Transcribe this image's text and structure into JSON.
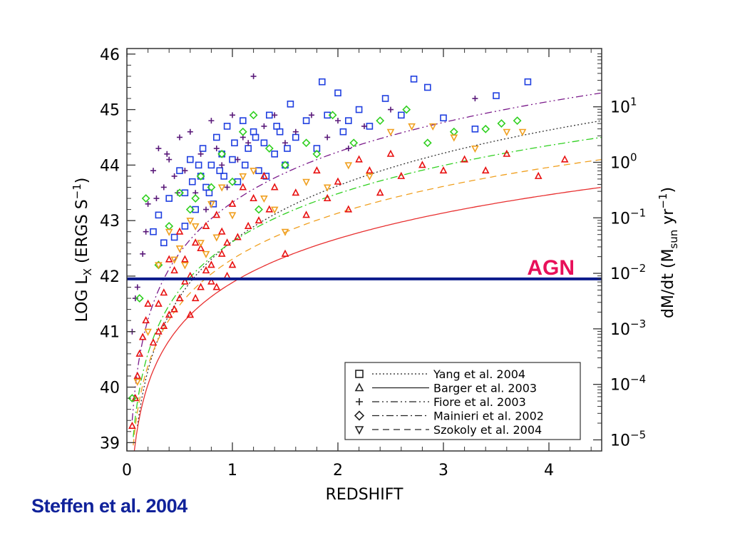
{
  "credit": "Steffen et al. 2004",
  "chart_data": {
    "type": "scatter",
    "title": "",
    "xlabel": "REDSHIFT",
    "ylabel": "LOG L",
    "ylabel_sub": "X",
    "ylabel_unit": " (ERGS S",
    "ylabel_unit_sup": "−1",
    "ylabel_unit_end": ")",
    "y2label_prefix": "dM/dt (M",
    "y2label_sub": "sun",
    "y2label_unit": " yr",
    "y2label_sup": "−1",
    "y2label_end": ")",
    "xlim": [
      0,
      4.5
    ],
    "ylim": [
      38.85,
      46.1
    ],
    "xticks": [
      0,
      1,
      2,
      3,
      4
    ],
    "xtick_labels": [
      "0",
      "1",
      "2",
      "3",
      "4"
    ],
    "yticks": [
      39,
      40,
      41,
      42,
      43,
      44,
      45,
      46
    ],
    "ytick_labels": [
      "39",
      "40",
      "41",
      "42",
      "43",
      "44",
      "45",
      "46"
    ],
    "y2ticks": [
      {
        "y": 39.05,
        "base": "10",
        "exp": "−5"
      },
      {
        "y": 40.05,
        "base": "10",
        "exp": "−4"
      },
      {
        "y": 41.05,
        "base": "10",
        "exp": "−3"
      },
      {
        "y": 42.05,
        "base": "10",
        "exp": "−2"
      },
      {
        "y": 43.05,
        "base": "10",
        "exp": "−1"
      },
      {
        "y": 44.05,
        "base": "10",
        "exp": "0"
      },
      {
        "y": 45.05,
        "base": "10",
        "exp": "1"
      }
    ],
    "agn_line": {
      "y": 41.95,
      "label": "AGN",
      "color": "#0a1a8c",
      "label_color": "#e8105a"
    },
    "grid": false,
    "legend_position": "bottom-right",
    "series": [
      {
        "name": "Yang et al. 2004",
        "marker": "square",
        "dash": "dotted",
        "color": "#1f3fe0",
        "curve_color": "#333333",
        "points": [
          [
            0.25,
            42.8
          ],
          [
            0.3,
            43.1
          ],
          [
            0.35,
            42.6
          ],
          [
            0.4,
            43.4
          ],
          [
            0.45,
            42.7
          ],
          [
            0.5,
            43.9
          ],
          [
            0.55,
            43.5
          ],
          [
            0.6,
            44.1
          ],
          [
            0.65,
            43.2
          ],
          [
            0.7,
            43.8
          ],
          [
            0.72,
            44.3
          ],
          [
            0.75,
            43.6
          ],
          [
            0.8,
            44.0
          ],
          [
            0.82,
            43.3
          ],
          [
            0.85,
            44.5
          ],
          [
            0.88,
            43.9
          ],
          [
            0.9,
            44.2
          ],
          [
            0.95,
            44.7
          ],
          [
            1.0,
            44.1
          ],
          [
            1.05,
            43.7
          ],
          [
            1.1,
            44.8
          ],
          [
            1.15,
            44.3
          ],
          [
            1.2,
            44.6
          ],
          [
            1.25,
            43.9
          ],
          [
            1.3,
            44.4
          ],
          [
            1.35,
            44.9
          ],
          [
            1.4,
            44.2
          ],
          [
            1.45,
            44.6
          ],
          [
            1.5,
            44.0
          ],
          [
            1.55,
            45.1
          ],
          [
            1.6,
            44.5
          ],
          [
            1.7,
            44.8
          ],
          [
            1.8,
            44.3
          ],
          [
            1.85,
            45.5
          ],
          [
            1.9,
            44.9
          ],
          [
            2.0,
            45.3
          ],
          [
            2.05,
            44.6
          ],
          [
            2.1,
            44.8
          ],
          [
            2.2,
            45.0
          ],
          [
            2.3,
            44.7
          ],
          [
            2.45,
            45.2
          ],
          [
            2.6,
            44.9
          ],
          [
            2.72,
            45.55
          ],
          [
            2.85,
            45.4
          ],
          [
            3.0,
            44.85
          ],
          [
            3.3,
            44.65
          ],
          [
            3.5,
            45.25
          ],
          [
            3.8,
            45.5
          ],
          [
            0.55,
            42.9
          ],
          [
            0.62,
            43.7
          ],
          [
            0.68,
            44.0
          ],
          [
            0.78,
            43.5
          ],
          [
            0.92,
            43.8
          ],
          [
            1.02,
            44.4
          ],
          [
            1.12,
            44.0
          ],
          [
            1.22,
            44.5
          ],
          [
            1.32,
            43.8
          ],
          [
            1.42,
            44.7
          ],
          [
            1.52,
            44.3
          ]
        ]
      },
      {
        "name": "Barger et al. 2003",
        "marker": "triangle",
        "dash": "solid",
        "color": "#e81010",
        "curve_color": "#e83030",
        "points": [
          [
            0.05,
            39.3
          ],
          [
            0.08,
            39.8
          ],
          [
            0.1,
            40.2
          ],
          [
            0.12,
            40.6
          ],
          [
            0.15,
            40.9
          ],
          [
            0.18,
            41.2
          ],
          [
            0.2,
            41.5
          ],
          [
            0.25,
            40.8
          ],
          [
            0.3,
            41.0
          ],
          [
            0.35,
            41.7
          ],
          [
            0.4,
            41.3
          ],
          [
            0.45,
            42.1
          ],
          [
            0.5,
            41.6
          ],
          [
            0.55,
            42.3
          ],
          [
            0.6,
            42.0
          ],
          [
            0.65,
            42.6
          ],
          [
            0.7,
            41.8
          ],
          [
            0.75,
            42.9
          ],
          [
            0.8,
            42.2
          ],
          [
            0.85,
            43.1
          ],
          [
            0.9,
            42.4
          ],
          [
            0.95,
            42.0
          ],
          [
            1.0,
            43.3
          ],
          [
            1.05,
            42.7
          ],
          [
            1.1,
            43.6
          ],
          [
            1.15,
            42.9
          ],
          [
            1.2,
            43.4
          ],
          [
            1.25,
            43.0
          ],
          [
            1.3,
            43.8
          ],
          [
            1.35,
            43.2
          ],
          [
            1.4,
            43.6
          ],
          [
            1.5,
            42.4
          ],
          [
            1.6,
            43.5
          ],
          [
            1.7,
            43.1
          ],
          [
            1.8,
            43.9
          ],
          [
            1.9,
            43.4
          ],
          [
            2.0,
            43.7
          ],
          [
            2.1,
            43.2
          ],
          [
            2.2,
            44.1
          ],
          [
            2.3,
            43.9
          ],
          [
            2.4,
            43.5
          ],
          [
            2.5,
            44.2
          ],
          [
            2.6,
            43.8
          ],
          [
            2.8,
            44.0
          ],
          [
            3.0,
            43.9
          ],
          [
            3.2,
            44.1
          ],
          [
            3.4,
            43.9
          ],
          [
            3.6,
            44.2
          ],
          [
            3.9,
            43.8
          ],
          [
            4.15,
            44.1
          ],
          [
            0.3,
            41.5
          ],
          [
            0.4,
            42.3
          ],
          [
            0.5,
            42.8
          ],
          [
            0.6,
            41.3
          ],
          [
            0.7,
            42.5
          ],
          [
            0.8,
            41.9
          ],
          [
            0.9,
            42.8
          ],
          [
            1.0,
            42.2
          ],
          [
            0.35,
            41.1
          ],
          [
            0.45,
            41.4
          ],
          [
            0.55,
            41.9
          ],
          [
            0.65,
            41.6
          ],
          [
            0.75,
            42.1
          ],
          [
            0.85,
            41.8
          ],
          [
            0.95,
            42.6
          ]
        ]
      },
      {
        "name": "Fiore et al. 2003",
        "marker": "plus",
        "dash": "dashdotdot",
        "color": "#5a1a7a",
        "curve_color": "#7a1a8a",
        "points": [
          [
            0.05,
            41.0
          ],
          [
            0.1,
            41.8
          ],
          [
            0.15,
            42.4
          ],
          [
            0.2,
            43.3
          ],
          [
            0.25,
            43.9
          ],
          [
            0.3,
            44.3
          ],
          [
            0.35,
            43.6
          ],
          [
            0.4,
            44.1
          ],
          [
            0.45,
            43.8
          ],
          [
            0.5,
            44.5
          ],
          [
            0.55,
            43.9
          ],
          [
            0.6,
            44.6
          ],
          [
            0.7,
            44.2
          ],
          [
            0.8,
            44.8
          ],
          [
            0.9,
            44.0
          ],
          [
            1.0,
            44.9
          ],
          [
            1.1,
            44.5
          ],
          [
            1.2,
            45.6
          ],
          [
            1.3,
            44.7
          ],
          [
            1.4,
            44.9
          ],
          [
            1.5,
            44.4
          ],
          [
            1.6,
            44.6
          ],
          [
            1.75,
            44.9
          ],
          [
            1.9,
            44.5
          ],
          [
            2.0,
            44.8
          ],
          [
            2.1,
            44.3
          ],
          [
            2.25,
            44.7
          ],
          [
            2.5,
            45.0
          ],
          [
            3.3,
            45.2
          ],
          [
            0.08,
            41.6
          ],
          [
            0.18,
            42.8
          ],
          [
            0.28,
            43.4
          ],
          [
            0.38,
            44.2
          ],
          [
            0.48,
            43.5
          ],
          [
            0.65,
            43.5
          ],
          [
            0.75,
            43.2
          ],
          [
            0.85,
            44.3
          ],
          [
            0.95,
            43.6
          ],
          [
            1.05,
            44.1
          ],
          [
            1.15,
            44.4
          ]
        ]
      },
      {
        "name": "Mainieri et al. 2002",
        "marker": "diamond",
        "dash": "dashdot",
        "color": "#30d020",
        "curve_color": "#30d020",
        "points": [
          [
            0.05,
            39.8
          ],
          [
            0.12,
            41.6
          ],
          [
            0.18,
            43.4
          ],
          [
            0.3,
            42.2
          ],
          [
            0.5,
            43.5
          ],
          [
            0.6,
            43.2
          ],
          [
            0.7,
            43.8
          ],
          [
            0.8,
            43.6
          ],
          [
            0.9,
            44.2
          ],
          [
            1.0,
            43.7
          ],
          [
            1.1,
            44.6
          ],
          [
            1.2,
            44.9
          ],
          [
            1.35,
            44.3
          ],
          [
            1.5,
            44.0
          ],
          [
            1.7,
            44.4
          ],
          [
            1.8,
            44.2
          ],
          [
            1.95,
            44.9
          ],
          [
            2.15,
            44.4
          ],
          [
            2.4,
            44.8
          ],
          [
            2.65,
            45.0
          ],
          [
            2.85,
            44.4
          ],
          [
            3.1,
            44.6
          ],
          [
            3.4,
            44.65
          ],
          [
            3.55,
            44.75
          ],
          [
            3.7,
            44.8
          ],
          [
            0.4,
            42.9
          ],
          [
            0.65,
            43.4
          ],
          [
            1.25,
            43.2
          ]
        ]
      },
      {
        "name": "Szokoly et al. 2004",
        "marker": "triangle-down",
        "dash": "dashed",
        "color": "#f0a020",
        "curve_color": "#f0a020",
        "points": [
          [
            0.1,
            40.1
          ],
          [
            0.2,
            41.0
          ],
          [
            0.3,
            42.2
          ],
          [
            0.4,
            42.8
          ],
          [
            0.5,
            42.5
          ],
          [
            0.6,
            43.0
          ],
          [
            0.7,
            42.6
          ],
          [
            0.8,
            43.3
          ],
          [
            0.9,
            43.6
          ],
          [
            1.0,
            43.1
          ],
          [
            1.1,
            43.8
          ],
          [
            1.2,
            43.9
          ],
          [
            1.3,
            43.4
          ],
          [
            1.4,
            43.2
          ],
          [
            1.5,
            42.8
          ],
          [
            1.7,
            43.7
          ],
          [
            1.9,
            43.6
          ],
          [
            2.1,
            44.0
          ],
          [
            2.3,
            43.8
          ],
          [
            2.5,
            44.6
          ],
          [
            2.7,
            44.7
          ],
          [
            2.9,
            44.7
          ],
          [
            3.1,
            44.5
          ],
          [
            3.3,
            44.3
          ],
          [
            3.6,
            44.6
          ],
          [
            3.75,
            44.6
          ],
          [
            0.45,
            42.3
          ],
          [
            0.55,
            42.2
          ],
          [
            0.65,
            42.9
          ],
          [
            0.75,
            42.4
          ],
          [
            0.85,
            42.7
          ]
        ]
      }
    ],
    "curves": [
      {
        "series": 0,
        "style": "dotted",
        "color": "#333333",
        "z0": 0.1,
        "y0": 39.3,
        "y45": 44.8
      },
      {
        "series": 1,
        "style": "solid",
        "color": "#e83030",
        "z0": 0.07,
        "y0": 38.85,
        "y45": 43.6
      },
      {
        "series": 2,
        "style": "dashdotdot",
        "color": "#7a1a8a",
        "z0": 0.05,
        "y0": 39.4,
        "y45": 45.3
      },
      {
        "series": 3,
        "style": "dashdot",
        "color": "#30d020",
        "z0": 0.06,
        "y0": 39.1,
        "y45": 44.5
      },
      {
        "series": 4,
        "style": "dashed",
        "color": "#f0a020",
        "z0": 0.06,
        "y0": 38.95,
        "y45": 44.1
      }
    ]
  }
}
